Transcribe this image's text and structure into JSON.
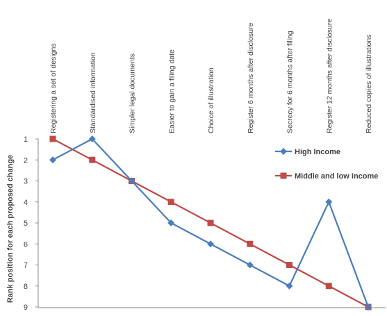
{
  "chart_data": {
    "type": "line",
    "categories": [
      "Registering a set of designs",
      "Standardised information",
      "Simpler legal documents",
      "Easier to gain a filing date",
      "Choice of illustration",
      "Register 6 months after disclosure",
      "Secrecy for 6 months after filing",
      "Register 12 months after disclosure",
      "Reduced copies of illustrations"
    ],
    "series": [
      {
        "name": "High Income",
        "values": [
          2,
          1,
          3,
          5,
          6,
          7,
          8,
          4,
          9
        ],
        "color": "#4a7ebb",
        "marker": "diamond"
      },
      {
        "name": "Middle and low income",
        "values": [
          1,
          2,
          3,
          4,
          5,
          6,
          7,
          8,
          9
        ],
        "color": "#be4b48",
        "marker": "square"
      }
    ],
    "xlabel": "",
    "ylabel": "Rank position for each proposed change",
    "ylim": [
      1,
      9
    ],
    "y_inverted": true,
    "y_ticks": [
      1,
      2,
      3,
      4,
      5,
      6,
      7,
      8,
      9
    ],
    "grid": false,
    "legend_position": "right"
  }
}
